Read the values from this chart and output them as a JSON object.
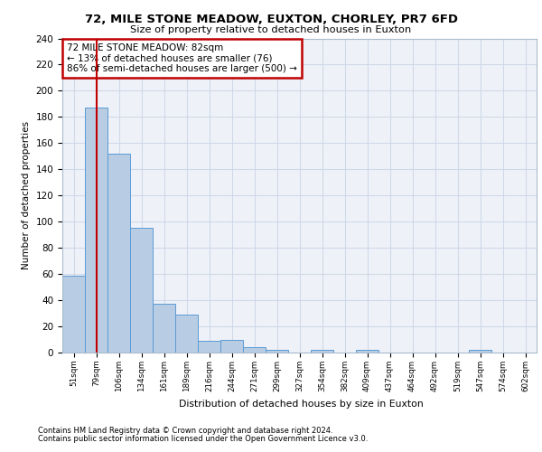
{
  "title1": "72, MILE STONE MEADOW, EUXTON, CHORLEY, PR7 6FD",
  "title2": "Size of property relative to detached houses in Euxton",
  "xlabel": "Distribution of detached houses by size in Euxton",
  "ylabel": "Number of detached properties",
  "categories": [
    "51sqm",
    "79sqm",
    "106sqm",
    "134sqm",
    "161sqm",
    "189sqm",
    "216sqm",
    "244sqm",
    "271sqm",
    "299sqm",
    "327sqm",
    "354sqm",
    "382sqm",
    "409sqm",
    "437sqm",
    "464sqm",
    "492sqm",
    "519sqm",
    "547sqm",
    "574sqm",
    "602sqm"
  ],
  "values": [
    59,
    187,
    152,
    95,
    37,
    29,
    9,
    10,
    4,
    2,
    0,
    2,
    0,
    2,
    0,
    0,
    0,
    0,
    2,
    0,
    0
  ],
  "bar_color": "#b8cce4",
  "bar_edge_color": "#5b9bd5",
  "grid_color": "#d0d8e8",
  "bg_color": "#eef2f8",
  "vline_x": 1,
  "vline_color": "#c00000",
  "annotation_lines": [
    "72 MILE STONE MEADOW: 82sqm",
    "← 13% of detached houses are smaller (76)",
    "86% of semi-detached houses are larger (500) →"
  ],
  "annotation_box_color": "#c00000",
  "footer1": "Contains HM Land Registry data © Crown copyright and database right 2024.",
  "footer2": "Contains public sector information licensed under the Open Government Licence v3.0.",
  "ylim": [
    0,
    240
  ],
  "yticks": [
    0,
    20,
    40,
    60,
    80,
    100,
    120,
    140,
    160,
    180,
    200,
    220,
    240
  ]
}
